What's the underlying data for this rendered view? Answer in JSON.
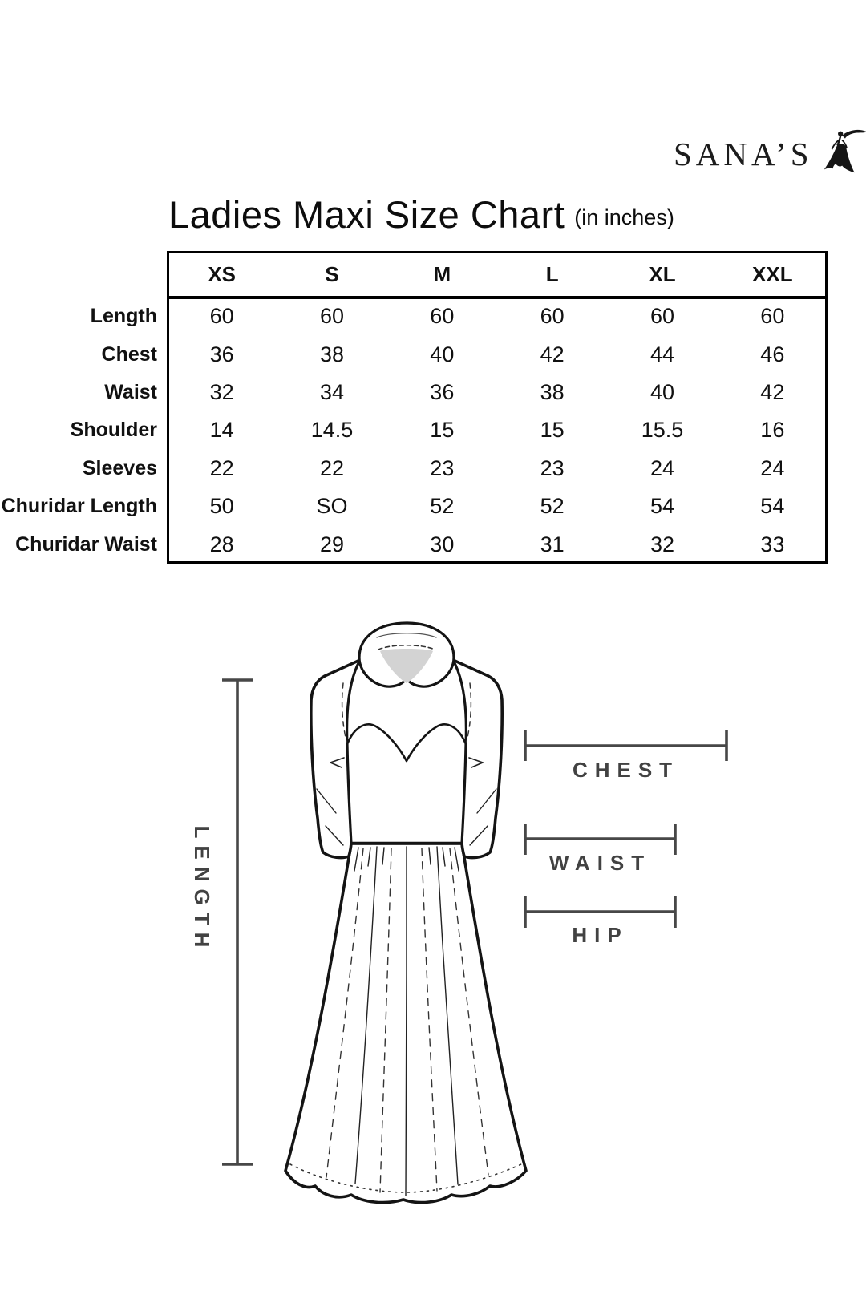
{
  "logo": {
    "brand": "SANA’S",
    "figure_icon": "dancing-woman-gown-icon"
  },
  "title": {
    "main": "Ladies Maxi Size Chart",
    "unit_note": "(in inches)"
  },
  "chart_data": {
    "type": "table",
    "title": "Ladies Maxi Size Chart (in inches)",
    "columns": [
      "XS",
      "S",
      "M",
      "L",
      "XL",
      "XXL"
    ],
    "rows": [
      {
        "label": "Length",
        "values": [
          "60",
          "60",
          "60",
          "60",
          "60",
          "60"
        ]
      },
      {
        "label": "Chest",
        "values": [
          "36",
          "38",
          "40",
          "42",
          "44",
          "46"
        ]
      },
      {
        "label": "Waist",
        "values": [
          "32",
          "34",
          "36",
          "38",
          "40",
          "42"
        ]
      },
      {
        "label": "Shoulder",
        "values": [
          "14",
          "14.5",
          "15",
          "15",
          "15.5",
          "16"
        ]
      },
      {
        "label": "Sleeves",
        "values": [
          "22",
          "22",
          "23",
          "23",
          "24",
          "24"
        ]
      },
      {
        "label": "Churidar Length",
        "values": [
          "50",
          "SO",
          "52",
          "52",
          "54",
          "54"
        ]
      },
      {
        "label": "Churidar Waist",
        "values": [
          "28",
          "29",
          "30",
          "31",
          "32",
          "33"
        ]
      }
    ]
  },
  "diagram": {
    "figure": "maxi-dress-line-drawing",
    "labels": {
      "length": "LENGTH",
      "chest": "CHEST",
      "waist": "WAIST",
      "hip": "HIP"
    },
    "line_color": "#474747"
  }
}
